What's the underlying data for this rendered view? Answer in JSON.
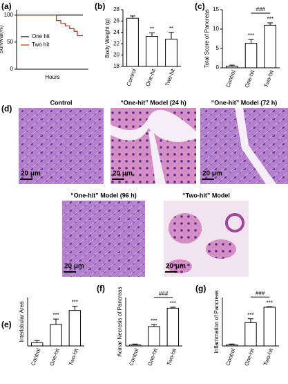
{
  "panels": [
    "(a)",
    "(b)",
    "(c)",
    "(d)",
    "(e)",
    "(f)",
    "(g)"
  ],
  "histology": [
    {
      "title": "Control",
      "scale": "20 μm"
    },
    {
      "title": "“One-hit” Model (24 h)",
      "scale": "20 μm"
    },
    {
      "title": "“One-hit” Model (72 h)",
      "scale": "20 μm"
    },
    {
      "title": "“One-hit” Model (96 h)",
      "scale": "20 μm"
    },
    {
      "title": "“Two-hit” Model",
      "scale": "20 μm"
    }
  ],
  "chart_data": [
    {
      "type": "line",
      "ylabel": "Survival(%)",
      "xlabel": "Hours",
      "step": true,
      "legend": "center-left",
      "xlim": [
        0,
        130
      ],
      "ylim": [
        0,
        110
      ],
      "yticks": [
        0,
        50,
        100
      ],
      "series": [
        {
          "name": "One hit",
          "color": "#000000",
          "x": [
            0,
            120
          ],
          "values": [
            100,
            100
          ]
        },
        {
          "name": "Two hit",
          "color": "#e0201b",
          "x": [
            0,
            72,
            80,
            88,
            96,
            104,
            110,
            120
          ],
          "values": [
            100,
            90,
            85,
            80,
            75,
            70,
            62,
            62
          ]
        }
      ]
    },
    {
      "type": "bar",
      "ylabel": "Body Weight (g)",
      "categories": [
        "Control",
        "One-hit",
        "Two-hit"
      ],
      "values": [
        26.5,
        23.3,
        22.8
      ],
      "errors": [
        0.4,
        0.6,
        1.2
      ],
      "significance": [
        null,
        "**",
        "**"
      ],
      "color": "#ffffff",
      "ylim": [
        18,
        28
      ],
      "yticks": [
        18,
        20,
        22,
        24,
        26,
        28
      ]
    },
    {
      "type": "bar",
      "ylabel": "Total Score of Pancreas",
      "categories": [
        "Control",
        "One-hit",
        "Two-hit"
      ],
      "values": [
        0.4,
        6.3,
        11
      ],
      "errors": [
        0.3,
        1.0,
        0.6
      ],
      "significance": [
        null,
        "***",
        "***"
      ],
      "bracket_label": "###",
      "color": "#ffffff",
      "ylim": [
        0,
        15
      ],
      "yticks": [
        0,
        5,
        10,
        15
      ]
    },
    {
      "type": "bar",
      "ylabel": "Interlobular Area",
      "categories": [
        "Control",
        "One-hit",
        "Two-hit"
      ],
      "values": [
        0.3,
        2.0,
        3.3
      ],
      "errors": [
        0.2,
        0.5,
        0.4
      ],
      "significance": [
        null,
        "***",
        "***"
      ],
      "color": "#ffffff",
      "ylim": [
        0,
        4.5
      ]
    },
    {
      "type": "bar",
      "ylabel": "Acinar Necrosis of Pancreas",
      "categories": [
        "Control",
        "One-hit",
        "Two-hit"
      ],
      "values": [
        0.1,
        2.0,
        3.9
      ],
      "errors": [
        0.1,
        0.2,
        0.1
      ],
      "significance": [
        null,
        "***",
        "***"
      ],
      "bracket_label": "###",
      "color": "#ffffff",
      "ylim": [
        0,
        5
      ]
    },
    {
      "type": "bar",
      "ylabel": "Inflammation of Pancreas",
      "categories": [
        "Control",
        "One-hit",
        "Two-hit"
      ],
      "values": [
        0.1,
        2.4,
        4.0
      ],
      "errors": [
        0.1,
        0.4,
        0.05
      ],
      "significance": [
        null,
        "***",
        "***"
      ],
      "bracket_label": "###",
      "color": "#ffffff",
      "ylim": [
        0,
        5
      ]
    }
  ]
}
